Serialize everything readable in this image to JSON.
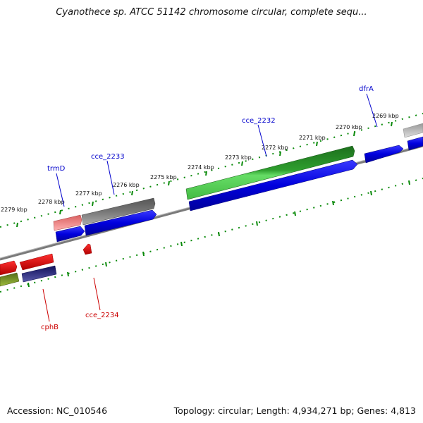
{
  "title": "Cyanothece sp. ATCC 51142 chromosome circular, complete sequ...",
  "footer": {
    "accession": "Accession: NC_010546",
    "summary": "Topology: circular; Length: 4,934,271 bp; Genes: 4,813"
  },
  "kbp_labels": [
    "2269 kbp",
    "2270 kbp",
    "2271 kbp",
    "2272 kbp",
    "2273 kbp",
    "2274 kbp",
    "2275 kbp",
    "2276 kbp",
    "2277 kbp",
    "2278 kbp",
    "2279 kbp"
  ],
  "gene_labels": [
    {
      "name": "dfrA",
      "color": "#0000cc"
    },
    {
      "name": "cce_2232",
      "color": "#0000cc"
    },
    {
      "name": "cce_2233",
      "color": "#0000cc"
    },
    {
      "name": "trmD",
      "color": "#0000cc"
    },
    {
      "name": "cce_2234",
      "color": "#cc0000"
    },
    {
      "name": "cphB",
      "color": "#cc0000"
    }
  ],
  "colors": {
    "blue_gene": "#0000dd",
    "green_gene": "#228b22",
    "gray_gene": "#666666",
    "pink_gene": "#f08080",
    "red_gene": "#ee0000",
    "navy_gene": "#1a1a7a",
    "olive_gene": "#6b8e23",
    "tick_green": "#0a8a0a",
    "backbone": "#7a7a7a"
  },
  "icons": [
    "gene-arrow-icon"
  ]
}
